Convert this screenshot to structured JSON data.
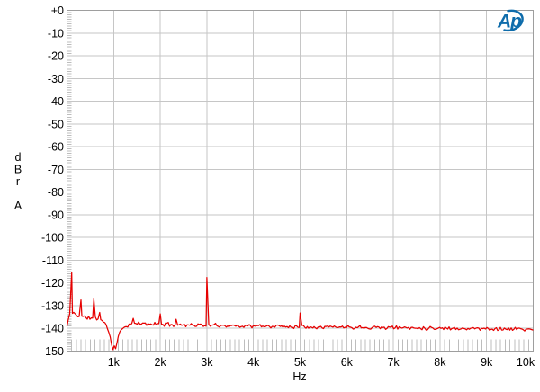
{
  "logo": {
    "text": "Ap",
    "color": "#0e6cab"
  },
  "colors": {
    "trace": "#e60000",
    "grid": "#c6c6c6",
    "minor_tick": "#bdbdbd",
    "border": "#9e9e9e",
    "text": "#000000",
    "background": "#ffffff"
  },
  "chart_data": {
    "type": "line",
    "title": "",
    "xlabel": "Hz",
    "ylabel": "dBr A",
    "ylabel_stack": [
      "d",
      "B",
      "r",
      "A"
    ],
    "xlim": [
      0,
      10000
    ],
    "ylim": [
      -150,
      0
    ],
    "grid": true,
    "legend": "none",
    "x_ticks": [
      1000,
      2000,
      3000,
      4000,
      5000,
      6000,
      7000,
      8000,
      9000,
      10000
    ],
    "x_tick_labels": [
      "1k",
      "2k",
      "3k",
      "4k",
      "5k",
      "6k",
      "7k",
      "8k",
      "9k",
      "10k"
    ],
    "y_ticks": [
      0,
      -10,
      -20,
      -30,
      -40,
      -50,
      -60,
      -70,
      -80,
      -90,
      -100,
      -110,
      -120,
      -130,
      -140,
      -150
    ],
    "y_tick_labels": [
      "+0",
      "-10",
      "-20",
      "-30",
      "-40",
      "-50",
      "-60",
      "-70",
      "-80",
      "-90",
      "-100",
      "-110",
      "-120",
      "-130",
      "-140",
      "-150"
    ],
    "x_minor_step_hz": 100,
    "y_minor_step_db": 1,
    "series": [
      {
        "name": "fft-noise-floor-trace",
        "color": "#e60000",
        "noise_db": 1.0,
        "seed": 11,
        "baseline_anchors": [
          [
            0,
            -139.0
          ],
          [
            25,
            -136.5
          ],
          [
            55,
            -134.0
          ],
          [
            140,
            -133.2
          ],
          [
            220,
            -134.3
          ],
          [
            350,
            -135.0
          ],
          [
            520,
            -135.5
          ],
          [
            680,
            -135.8
          ],
          [
            735,
            -136.0
          ],
          [
            810,
            -137.5
          ],
          [
            890,
            -141.0
          ],
          [
            927,
            -144.0
          ],
          [
            965,
            -148.0
          ],
          [
            990,
            -150.0
          ],
          [
            1010,
            -146.5
          ],
          [
            1035,
            -150.0
          ],
          [
            1080,
            -145.0
          ],
          [
            1140,
            -141.5
          ],
          [
            1215,
            -139.5
          ],
          [
            1370,
            -138.0
          ],
          [
            1500,
            -137.9
          ],
          [
            2000,
            -138.2
          ],
          [
            3000,
            -138.6
          ],
          [
            4000,
            -139.0
          ],
          [
            5000,
            -139.2
          ],
          [
            6500,
            -139.5
          ],
          [
            8000,
            -139.9
          ],
          [
            10000,
            -140.4
          ]
        ],
        "spikes": [
          [
            100,
            -115.5
          ],
          [
            300,
            -127.5
          ],
          [
            575,
            -127.0
          ],
          [
            700,
            -133.0
          ],
          [
            1420,
            -135.6
          ],
          [
            2000,
            -133.6
          ],
          [
            2340,
            -136.0
          ],
          [
            3000,
            -117.6
          ],
          [
            5000,
            -133.2
          ]
        ]
      }
    ]
  }
}
